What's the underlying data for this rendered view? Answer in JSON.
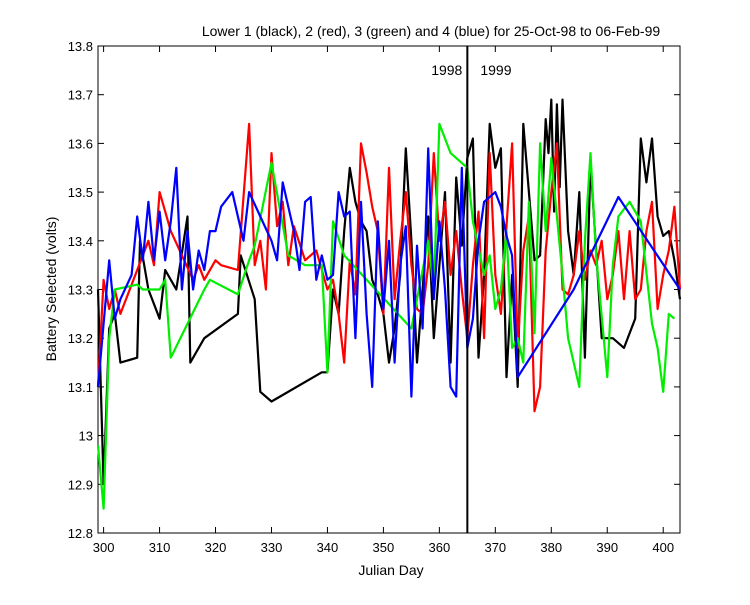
{
  "chart_data": {
    "type": "line",
    "title": "Lower 1 (black), 2 (red), 3 (green) and 4 (blue) for 25-Oct-98 to 06-Feb-99",
    "xlabel": "Julian Day",
    "ylabel": "Battery Selected (volts)",
    "xlim": [
      299,
      403
    ],
    "ylim": [
      12.8,
      13.8
    ],
    "xticks": [
      300,
      310,
      320,
      330,
      340,
      350,
      360,
      370,
      380,
      390,
      400
    ],
    "yticks": [
      12.8,
      12.9,
      13.0,
      13.1,
      13.2,
      13.3,
      13.4,
      13.5,
      13.6,
      13.7,
      13.8
    ],
    "ytick_labels": [
      "12.8",
      "12.9",
      "13",
      "13.1",
      "13.2",
      "13.3",
      "13.4",
      "13.5",
      "13.6",
      "13.7",
      "13.8"
    ],
    "grid": false,
    "year_marker": {
      "x": 365,
      "left_label": "1998",
      "right_label": "1999",
      "color": "#000000"
    },
    "series": [
      {
        "color": "#000000",
        "x": [
          299,
          300,
          301,
          302,
          303,
          306,
          306.5,
          308,
          310,
          311,
          312,
          313,
          315,
          315.5,
          318,
          324,
          324.5,
          327,
          328,
          330,
          339,
          340,
          341,
          342,
          343,
          344,
          345,
          346,
          347,
          348,
          349,
          350,
          351,
          352,
          353,
          354,
          355,
          356,
          357,
          358,
          359,
          360,
          361,
          362,
          363,
          364,
          365,
          366,
          367,
          368,
          369,
          370,
          371,
          372,
          373,
          374,
          375,
          376,
          377,
          378,
          379,
          379.5,
          380,
          380.5,
          381,
          381.5,
          382,
          383,
          384,
          385,
          386,
          387,
          389,
          390,
          391,
          393,
          395,
          396,
          397,
          398,
          399,
          400,
          401,
          402,
          403
        ],
        "y": [
          13.3,
          12.9,
          13.22,
          13.25,
          13.15,
          13.16,
          13.4,
          13.3,
          13.24,
          13.34,
          13.32,
          13.3,
          13.45,
          13.15,
          13.2,
          13.25,
          13.37,
          13.28,
          13.09,
          13.07,
          13.13,
          13.13,
          13.3,
          13.25,
          13.42,
          13.55,
          13.48,
          13.44,
          13.42,
          13.32,
          13.29,
          13.25,
          13.15,
          13.22,
          13.33,
          13.59,
          13.4,
          13.15,
          13.3,
          13.45,
          13.2,
          13.35,
          13.5,
          13.15,
          13.53,
          13.39,
          13.57,
          13.61,
          13.16,
          13.33,
          13.64,
          13.55,
          13.59,
          13.12,
          13.33,
          13.1,
          13.64,
          13.5,
          13.36,
          13.37,
          13.65,
          13.58,
          13.69,
          13.46,
          13.68,
          13.51,
          13.69,
          13.42,
          13.33,
          13.5,
          13.16,
          13.56,
          13.2,
          13.2,
          13.2,
          13.18,
          13.24,
          13.61,
          13.52,
          13.61,
          13.45,
          13.41,
          13.42,
          13.36,
          13.28
        ]
      },
      {
        "color": "#ff0000",
        "x": [
          299,
          300,
          301,
          302,
          303,
          308,
          309,
          310,
          311,
          312,
          316,
          317,
          318,
          320,
          321,
          324,
          326,
          327,
          328,
          329,
          330,
          331,
          332,
          333,
          334,
          336,
          338,
          340,
          341,
          342,
          343,
          344,
          345,
          346,
          347,
          348,
          349,
          350,
          351,
          352,
          353,
          354,
          355,
          356,
          357,
          358,
          359,
          360,
          361,
          362,
          363,
          364,
          365,
          366,
          367,
          368,
          369,
          370,
          371,
          372,
          373,
          374,
          375,
          376,
          377,
          378,
          379,
          380,
          381,
          382,
          383,
          384,
          385,
          386,
          387,
          388,
          389,
          390,
          391,
          392,
          393,
          394,
          395,
          396,
          397,
          398,
          399,
          400,
          401,
          402,
          403
        ],
        "y": [
          13.1,
          13.32,
          13.26,
          13.3,
          13.25,
          13.4,
          13.35,
          13.5,
          13.46,
          13.42,
          13.32,
          13.35,
          13.32,
          13.36,
          13.35,
          13.34,
          13.64,
          13.35,
          13.4,
          13.3,
          13.58,
          13.43,
          13.48,
          13.35,
          13.43,
          13.36,
          13.38,
          13.3,
          13.32,
          13.25,
          13.15,
          13.36,
          13.29,
          13.6,
          13.54,
          13.47,
          13.42,
          13.25,
          13.55,
          13.28,
          13.4,
          13.5,
          13.35,
          13.26,
          13.25,
          13.35,
          13.58,
          13.4,
          13.48,
          13.33,
          13.42,
          13.3,
          13.2,
          13.35,
          13.46,
          13.2,
          13.58,
          13.33,
          13.25,
          13.43,
          13.6,
          13.18,
          13.38,
          13.45,
          13.05,
          13.1,
          13.38,
          13.5,
          13.6,
          13.3,
          13.29,
          13.33,
          13.42,
          13.32,
          13.38,
          13.35,
          13.4,
          13.28,
          13.33,
          13.42,
          13.28,
          13.42,
          13.28,
          13.3,
          13.42,
          13.48,
          13.26,
          13.33,
          13.38,
          13.47,
          13.3
        ]
      },
      {
        "color": "#00ee00",
        "x": [
          299,
          300,
          301,
          302,
          306,
          307,
          310,
          311,
          312,
          318,
          319,
          324,
          326,
          327,
          330,
          333,
          336,
          339,
          340,
          341,
          343,
          355,
          358,
          359,
          360,
          362,
          365,
          366,
          368,
          369,
          370,
          371,
          372,
          373,
          374,
          375,
          376,
          377,
          378,
          379,
          380,
          382,
          383,
          385,
          386,
          387,
          388,
          390,
          391,
          392,
          394,
          396,
          398,
          399,
          400,
          401,
          402
        ],
        "y": [
          12.98,
          12.85,
          13.2,
          13.3,
          13.31,
          13.3,
          13.3,
          13.32,
          13.16,
          13.3,
          13.32,
          13.29,
          13.36,
          13.39,
          13.56,
          13.37,
          13.35,
          13.35,
          13.13,
          13.44,
          13.37,
          13.22,
          13.4,
          13.3,
          13.64,
          13.58,
          13.55,
          13.44,
          13.33,
          13.37,
          13.26,
          13.3,
          13.42,
          13.18,
          13.2,
          13.15,
          13.48,
          13.21,
          13.6,
          13.42,
          13.57,
          13.33,
          13.2,
          13.1,
          13.4,
          13.58,
          13.37,
          13.12,
          13.35,
          13.45,
          13.48,
          13.44,
          13.23,
          13.18,
          13.09,
          13.25,
          13.24
        ]
      },
      {
        "color": "#0000ff",
        "x": [
          299,
          301,
          302,
          303,
          305,
          306,
          307,
          308,
          309,
          310,
          311,
          312,
          313,
          314,
          315,
          316,
          317,
          318,
          319,
          320,
          321,
          323,
          324,
          325,
          326,
          328,
          330,
          331,
          332,
          333,
          334,
          335,
          336,
          337,
          338,
          339,
          340,
          341,
          342,
          343,
          344,
          345,
          346,
          347,
          348,
          349,
          350,
          351,
          352,
          353,
          354,
          355,
          356,
          357,
          358,
          359,
          360,
          361,
          362,
          363,
          364,
          365,
          366,
          367,
          368,
          369,
          370,
          371,
          372,
          373,
          374,
          384,
          392,
          403
        ],
        "y": [
          13.1,
          13.36,
          13.24,
          13.28,
          13.33,
          13.45,
          13.36,
          13.48,
          13.36,
          13.46,
          13.36,
          13.44,
          13.55,
          13.3,
          13.42,
          13.3,
          13.38,
          13.34,
          13.42,
          13.42,
          13.47,
          13.5,
          13.45,
          13.4,
          13.5,
          13.45,
          13.4,
          13.36,
          13.52,
          13.47,
          13.42,
          13.34,
          13.48,
          13.49,
          13.32,
          13.37,
          13.32,
          13.33,
          13.5,
          13.45,
          13.46,
          13.2,
          13.48,
          13.25,
          13.1,
          13.44,
          13.26,
          13.4,
          13.15,
          13.35,
          13.43,
          13.08,
          13.39,
          13.22,
          13.59,
          13.28,
          13.44,
          13.3,
          13.1,
          13.08,
          13.55,
          13.18,
          13.24,
          13.4,
          13.48,
          13.49,
          13.5,
          13.47,
          13.41,
          13.37,
          13.12,
          13.3,
          13.49,
          13.3
        ]
      }
    ]
  }
}
